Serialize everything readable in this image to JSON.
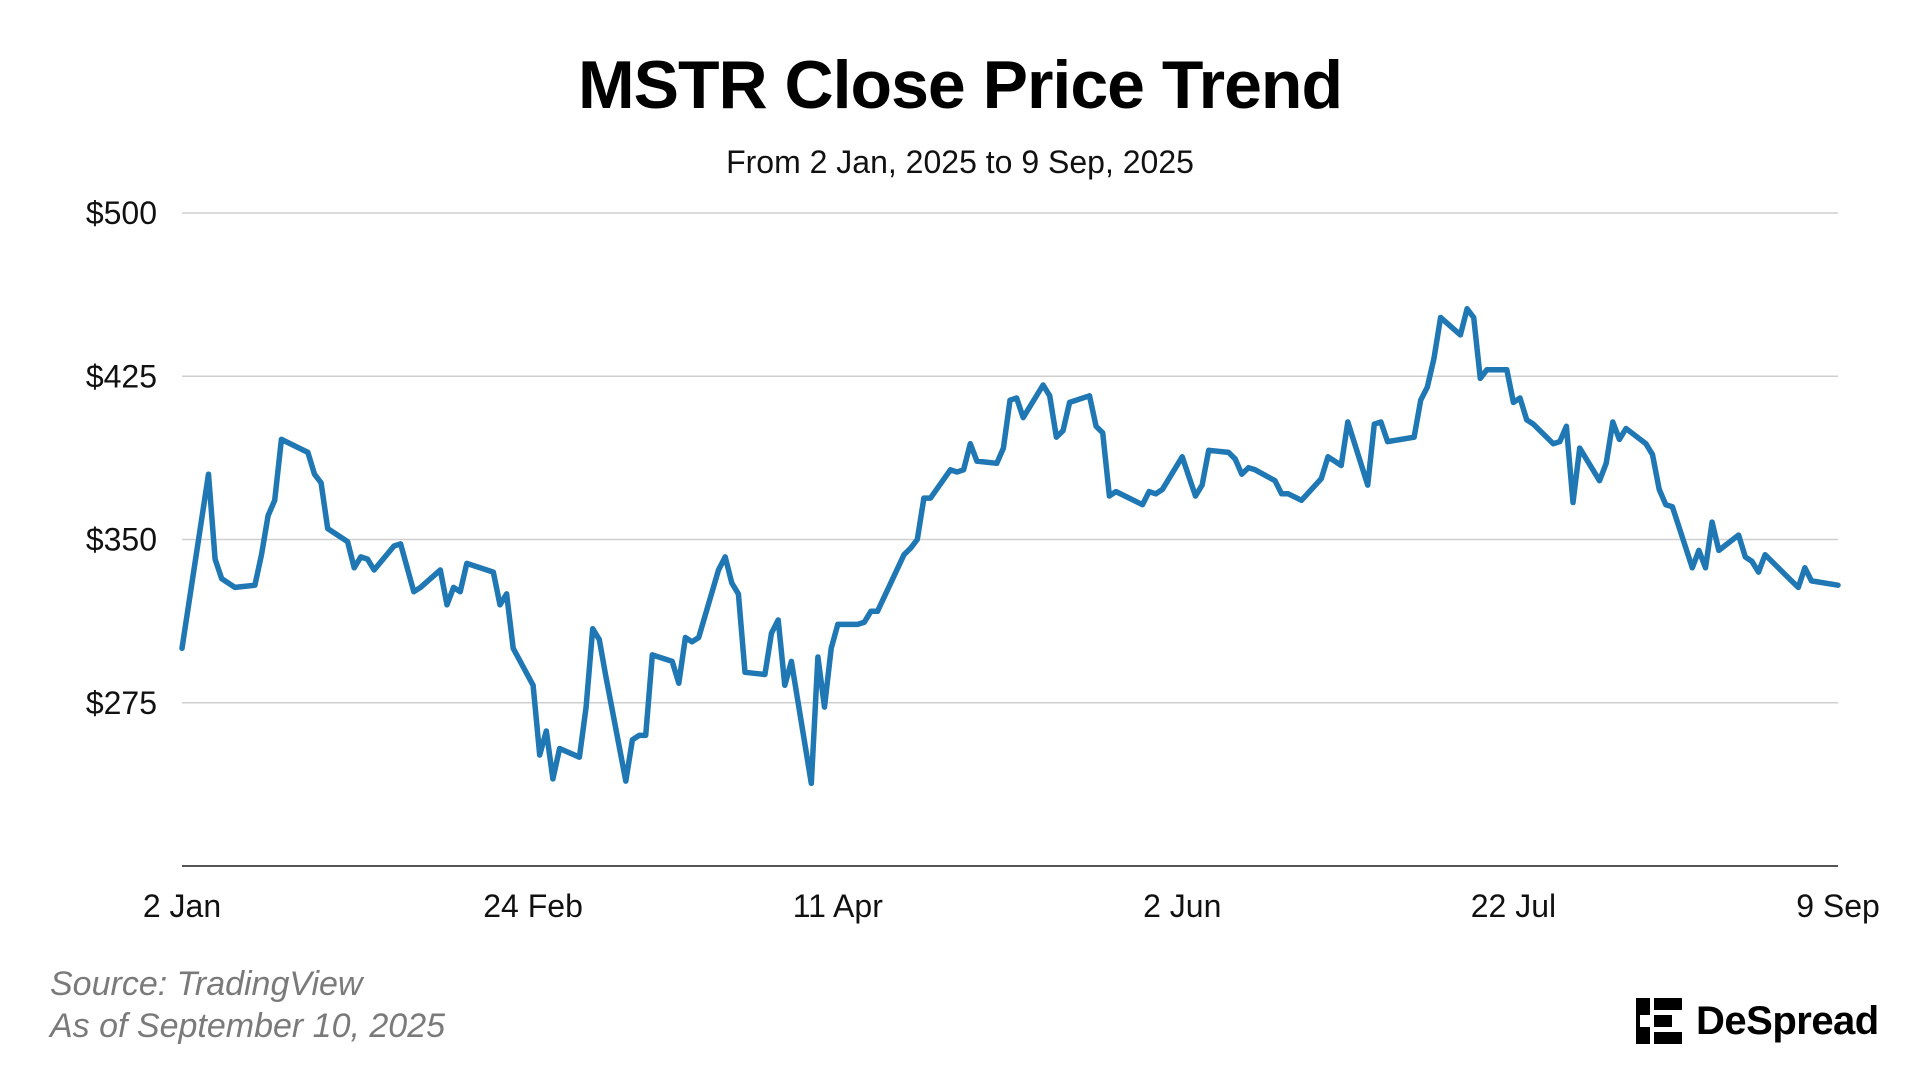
{
  "title": "MSTR Close Price Trend",
  "subtitle": "From 2 Jan, 2025 to 9 Sep, 2025",
  "source_line": "Source: TradingView",
  "asof_line": "As of September 10, 2025",
  "brand": "DeSpread",
  "colors": {
    "line": "#1f77b4",
    "grid": "#cfcfcf",
    "source_text": "#7a7a7a"
  },
  "chart_data": {
    "type": "line",
    "title": "MSTR Close Price Trend",
    "subtitle": "From 2 Jan, 2025 to 9 Sep, 2025",
    "xlabel": "",
    "ylabel": "",
    "ylim": [
      200,
      500
    ],
    "y_ticks": [
      275,
      350,
      425,
      500
    ],
    "y_tick_labels": [
      "$275",
      "$350",
      "$425",
      "$500"
    ],
    "x_ticks": [
      "2025-01-02",
      "2025-02-24",
      "2025-04-11",
      "2025-06-02",
      "2025-07-22",
      "2025-09-09"
    ],
    "x_tick_labels": [
      "2 Jan",
      "24 Feb",
      "11 Apr",
      "2 Jun",
      "22 Jul",
      "9 Sep"
    ],
    "xlim": [
      "2025-01-02",
      "2025-09-09"
    ],
    "grid": "horizontal",
    "series": [
      {
        "values": [
          [
            "2025-01-02",
            300
          ],
          [
            "2025-01-06",
            380
          ],
          [
            "2025-01-07",
            341
          ],
          [
            "2025-01-08",
            332
          ],
          [
            "2025-01-10",
            328
          ],
          [
            "2025-01-13",
            329
          ],
          [
            "2025-01-14",
            343
          ],
          [
            "2025-01-15",
            361
          ],
          [
            "2025-01-16",
            368
          ],
          [
            "2025-01-17",
            396
          ],
          [
            "2025-01-21",
            390
          ],
          [
            "2025-01-22",
            380
          ],
          [
            "2025-01-23",
            376
          ],
          [
            "2025-01-24",
            355
          ],
          [
            "2025-01-27",
            349
          ],
          [
            "2025-01-28",
            337
          ],
          [
            "2025-01-29",
            342
          ],
          [
            "2025-01-30",
            341
          ],
          [
            "2025-01-31",
            336
          ],
          [
            "2025-02-03",
            347
          ],
          [
            "2025-02-04",
            348
          ],
          [
            "2025-02-05",
            337
          ],
          [
            "2025-02-06",
            326
          ],
          [
            "2025-02-07",
            328
          ],
          [
            "2025-02-10",
            336
          ],
          [
            "2025-02-11",
            320
          ],
          [
            "2025-02-12",
            328
          ],
          [
            "2025-02-13",
            326
          ],
          [
            "2025-02-14",
            339
          ],
          [
            "2025-02-18",
            335
          ],
          [
            "2025-02-19",
            320
          ],
          [
            "2025-02-20",
            325
          ],
          [
            "2025-02-21",
            300
          ],
          [
            "2025-02-24",
            283
          ],
          [
            "2025-02-25",
            251
          ],
          [
            "2025-02-26",
            262
          ],
          [
            "2025-02-27",
            240
          ],
          [
            "2025-02-28",
            254
          ],
          [
            "2025-03-03",
            250
          ],
          [
            "2025-03-04",
            273
          ],
          [
            "2025-03-05",
            309
          ],
          [
            "2025-03-06",
            304
          ],
          [
            "2025-03-07",
            287
          ],
          [
            "2025-03-10",
            239
          ],
          [
            "2025-03-11",
            258
          ],
          [
            "2025-03-12",
            260
          ],
          [
            "2025-03-13",
            260
          ],
          [
            "2025-03-14",
            297
          ],
          [
            "2025-03-17",
            294
          ],
          [
            "2025-03-18",
            284
          ],
          [
            "2025-03-19",
            305
          ],
          [
            "2025-03-20",
            303
          ],
          [
            "2025-03-21",
            305
          ],
          [
            "2025-03-24",
            336
          ],
          [
            "2025-03-25",
            342
          ],
          [
            "2025-03-26",
            330
          ],
          [
            "2025-03-27",
            325
          ],
          [
            "2025-03-28",
            289
          ],
          [
            "2025-03-31",
            288
          ],
          [
            "2025-04-01",
            307
          ],
          [
            "2025-04-02",
            313
          ],
          [
            "2025-04-03",
            283
          ],
          [
            "2025-04-04",
            294
          ],
          [
            "2025-04-07",
            238
          ],
          [
            "2025-04-08",
            296
          ],
          [
            "2025-04-09",
            273
          ],
          [
            "2025-04-10",
            300
          ],
          [
            "2025-04-11",
            311
          ],
          [
            "2025-04-14",
            311
          ],
          [
            "2025-04-15",
            312
          ],
          [
            "2025-04-16",
            317
          ],
          [
            "2025-04-17",
            317
          ],
          [
            "2025-04-21",
            343
          ],
          [
            "2025-04-22",
            346
          ],
          [
            "2025-04-23",
            350
          ],
          [
            "2025-04-24",
            369
          ],
          [
            "2025-04-25",
            369
          ],
          [
            "2025-04-28",
            382
          ],
          [
            "2025-04-29",
            381
          ],
          [
            "2025-04-30",
            382
          ],
          [
            "2025-05-01",
            394
          ],
          [
            "2025-05-02",
            386
          ],
          [
            "2025-05-05",
            385
          ],
          [
            "2025-05-06",
            392
          ],
          [
            "2025-05-07",
            414
          ],
          [
            "2025-05-08",
            415
          ],
          [
            "2025-05-09",
            406
          ],
          [
            "2025-05-12",
            421
          ],
          [
            "2025-05-13",
            416
          ],
          [
            "2025-05-14",
            397
          ],
          [
            "2025-05-15",
            400
          ],
          [
            "2025-05-16",
            413
          ],
          [
            "2025-05-19",
            416
          ],
          [
            "2025-05-20",
            402
          ],
          [
            "2025-05-21",
            399
          ],
          [
            "2025-05-22",
            370
          ],
          [
            "2025-05-23",
            372
          ],
          [
            "2025-05-27",
            366
          ],
          [
            "2025-05-28",
            372
          ],
          [
            "2025-05-29",
            371
          ],
          [
            "2025-05-30",
            373
          ],
          [
            "2025-06-02",
            388
          ],
          [
            "2025-06-03",
            379
          ],
          [
            "2025-06-04",
            370
          ],
          [
            "2025-06-05",
            375
          ],
          [
            "2025-06-06",
            391
          ],
          [
            "2025-06-09",
            390
          ],
          [
            "2025-06-10",
            387
          ],
          [
            "2025-06-11",
            380
          ],
          [
            "2025-06-12",
            383
          ],
          [
            "2025-06-13",
            382
          ],
          [
            "2025-06-16",
            377
          ],
          [
            "2025-06-17",
            371
          ],
          [
            "2025-06-18",
            371
          ],
          [
            "2025-06-20",
            368
          ],
          [
            "2025-06-23",
            378
          ],
          [
            "2025-06-24",
            388
          ],
          [
            "2025-06-25",
            386
          ],
          [
            "2025-06-26",
            384
          ],
          [
            "2025-06-27",
            404
          ],
          [
            "2025-06-30",
            375
          ],
          [
            "2025-07-01",
            403
          ],
          [
            "2025-07-02",
            404
          ],
          [
            "2025-07-03",
            395
          ],
          [
            "2025-07-07",
            397
          ],
          [
            "2025-07-08",
            414
          ],
          [
            "2025-07-09",
            420
          ],
          [
            "2025-07-10",
            433
          ],
          [
            "2025-07-11",
            452
          ],
          [
            "2025-07-14",
            444
          ],
          [
            "2025-07-15",
            456
          ],
          [
            "2025-07-16",
            452
          ],
          [
            "2025-07-17",
            424
          ],
          [
            "2025-07-18",
            428
          ],
          [
            "2025-07-21",
            428
          ],
          [
            "2025-07-22",
            413
          ],
          [
            "2025-07-23",
            415
          ],
          [
            "2025-07-24",
            405
          ],
          [
            "2025-07-25",
            403
          ],
          [
            "2025-07-28",
            394
          ],
          [
            "2025-07-29",
            395
          ],
          [
            "2025-07-30",
            402
          ],
          [
            "2025-07-31",
            367
          ],
          [
            "2025-08-01",
            392
          ],
          [
            "2025-08-04",
            377
          ],
          [
            "2025-08-05",
            385
          ],
          [
            "2025-08-06",
            404
          ],
          [
            "2025-08-07",
            396
          ],
          [
            "2025-08-08",
            401
          ],
          [
            "2025-08-11",
            394
          ],
          [
            "2025-08-12",
            389
          ],
          [
            "2025-08-13",
            373
          ],
          [
            "2025-08-14",
            366
          ],
          [
            "2025-08-15",
            365
          ],
          [
            "2025-08-18",
            337
          ],
          [
            "2025-08-19",
            345
          ],
          [
            "2025-08-20",
            337
          ],
          [
            "2025-08-21",
            358
          ],
          [
            "2025-08-22",
            345
          ],
          [
            "2025-08-25",
            352
          ],
          [
            "2025-08-26",
            342
          ],
          [
            "2025-08-27",
            340
          ],
          [
            "2025-08-28",
            335
          ],
          [
            "2025-08-29",
            343
          ],
          [
            "2025-09-02",
            331
          ],
          [
            "2025-09-03",
            328
          ],
          [
            "2025-09-04",
            337
          ],
          [
            "2025-09-05",
            331
          ],
          [
            "2025-09-09",
            329
          ]
        ]
      }
    ]
  }
}
